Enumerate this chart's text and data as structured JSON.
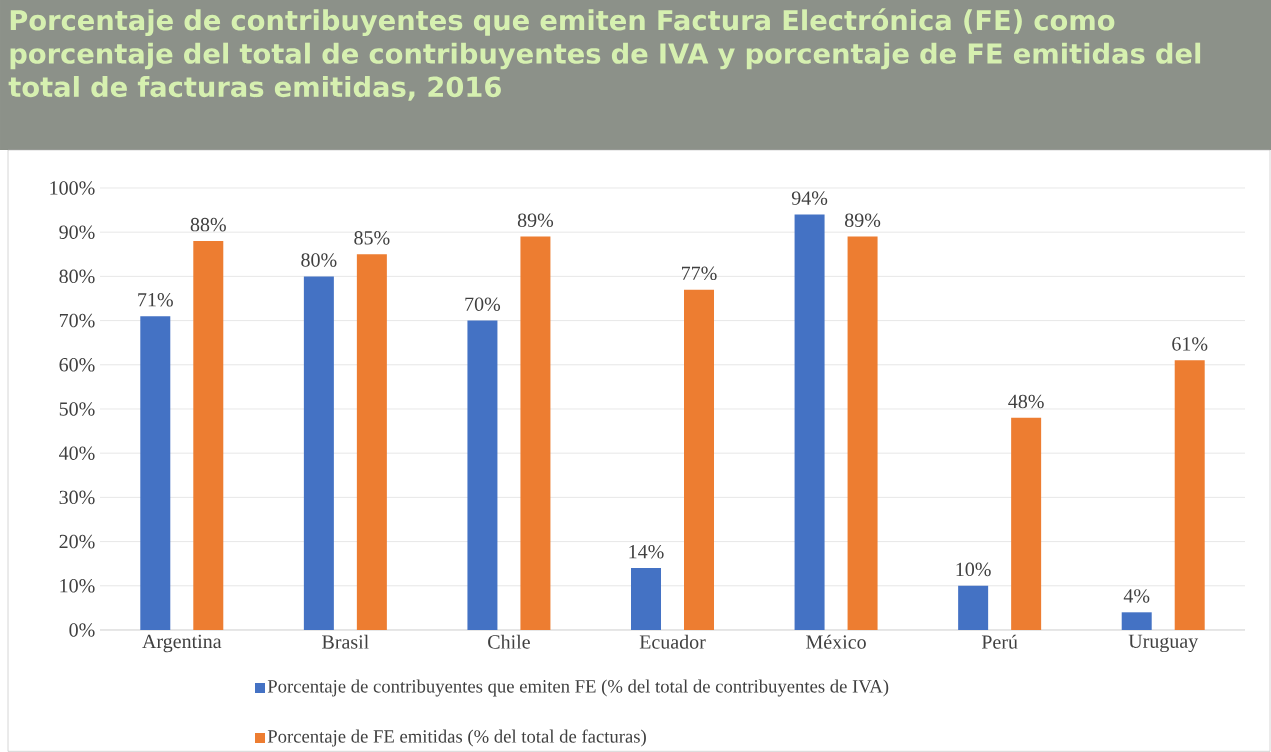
{
  "chart_data": {
    "type": "bar",
    "title": "Porcentaje de contribuyentes que emiten Factura Electrónica (FE) como porcentaje del total de contribuyentes de IVA y porcentaje de FE emitidas del total de facturas emitidas, 2016",
    "categories": [
      "Argentina",
      "Brasil",
      "Chile",
      "Ecuador",
      "México",
      "Perú",
      "Uruguay"
    ],
    "series": [
      {
        "name": "Porcentaje de contribuyentes que emiten FE (% del total de contribuyentes de IVA)",
        "color": "#4472c4",
        "values": [
          71,
          80,
          70,
          14,
          94,
          10,
          4
        ],
        "value_labels": [
          "71%",
          "80%",
          "70%",
          "14%",
          "94%",
          "10%",
          "4%"
        ]
      },
      {
        "name": "Porcentaje de FE emitidas (% del total de facturas)",
        "color": "#ed7d31",
        "values": [
          88,
          85,
          89,
          77,
          89,
          48,
          61
        ],
        "value_labels": [
          "88%",
          "85%",
          "89%",
          "77%",
          "89%",
          "48%",
          "61%"
        ]
      }
    ],
    "ylim": [
      0,
      100
    ],
    "yticks": [
      {
        "value": 0,
        "label": "0%"
      },
      {
        "value": 10,
        "label": "10%"
      },
      {
        "value": 20,
        "label": "20%"
      },
      {
        "value": 30,
        "label": "30%"
      },
      {
        "value": 40,
        "label": "40%"
      },
      {
        "value": 50,
        "label": "50%"
      },
      {
        "value": 60,
        "label": "60%"
      },
      {
        "value": 70,
        "label": "70%"
      },
      {
        "value": 80,
        "label": "80%"
      },
      {
        "value": 90,
        "label": "90%"
      },
      {
        "value": 100,
        "label": "100%"
      }
    ],
    "grid": "y",
    "legend": "bottom"
  }
}
